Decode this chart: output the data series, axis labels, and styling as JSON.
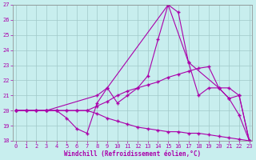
{
  "xlabel": "Windchill (Refroidissement éolien,°C)",
  "background_color": "#c8eeee",
  "line_color": "#aa00aa",
  "xlim_min": 0,
  "xlim_max": 23,
  "ylim_min": 18,
  "ylim_max": 27,
  "xticks": [
    0,
    1,
    2,
    3,
    4,
    5,
    6,
    7,
    8,
    9,
    10,
    11,
    12,
    13,
    14,
    15,
    16,
    17,
    18,
    19,
    20,
    21,
    22,
    23
  ],
  "yticks": [
    18,
    19,
    20,
    21,
    22,
    23,
    24,
    25,
    26,
    27
  ],
  "line1_x": [
    0,
    1,
    2,
    3,
    4,
    5,
    6,
    7,
    8,
    9,
    10,
    11,
    12,
    13,
    14,
    15,
    16,
    17,
    18,
    19,
    20,
    21,
    22,
    23
  ],
  "line1_y": [
    20,
    20,
    20,
    20,
    20,
    19.5,
    18.8,
    18.5,
    20.5,
    21.5,
    20.5,
    21.0,
    21.5,
    22.3,
    24.7,
    27.0,
    26.5,
    23.2,
    21.0,
    21.5,
    21.5,
    20.8,
    19.7,
    18.0
  ],
  "line2_x": [
    0,
    3,
    8,
    9,
    15,
    17,
    20,
    21,
    22,
    23
  ],
  "line2_y": [
    20,
    20,
    21.0,
    21.5,
    27.0,
    23.2,
    21.5,
    20.8,
    21.0,
    18.0
  ],
  "line3_x": [
    0,
    1,
    2,
    3,
    4,
    5,
    6,
    7,
    8,
    9,
    10,
    11,
    12,
    13,
    14,
    15,
    16,
    17,
    18,
    19,
    20,
    21,
    22,
    23
  ],
  "line3_y": [
    20,
    20,
    20,
    20,
    20,
    20,
    20,
    20,
    20.3,
    20.6,
    21.0,
    21.3,
    21.5,
    21.7,
    21.9,
    22.2,
    22.4,
    22.6,
    22.8,
    22.9,
    21.5,
    21.5,
    21.0,
    18.0
  ],
  "line4_x": [
    0,
    1,
    2,
    3,
    4,
    5,
    6,
    7,
    8,
    9,
    10,
    11,
    12,
    13,
    14,
    15,
    16,
    17,
    18,
    19,
    20,
    21,
    22,
    23
  ],
  "line4_y": [
    20,
    20,
    20,
    20,
    20,
    20,
    20,
    20,
    19.8,
    19.5,
    19.3,
    19.1,
    18.9,
    18.8,
    18.7,
    18.6,
    18.6,
    18.5,
    18.5,
    18.4,
    18.3,
    18.2,
    18.1,
    18.0
  ]
}
